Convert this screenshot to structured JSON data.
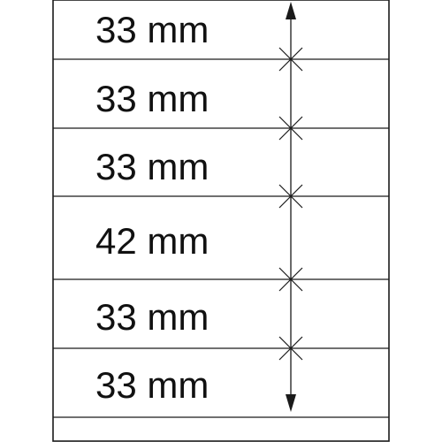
{
  "diagram": {
    "rows": [
      {
        "label": "33 mm"
      },
      {
        "label": "33 mm"
      },
      {
        "label": "33 mm"
      },
      {
        "label": "42 mm"
      },
      {
        "label": "33 mm"
      },
      {
        "label": "33 mm"
      }
    ]
  }
}
